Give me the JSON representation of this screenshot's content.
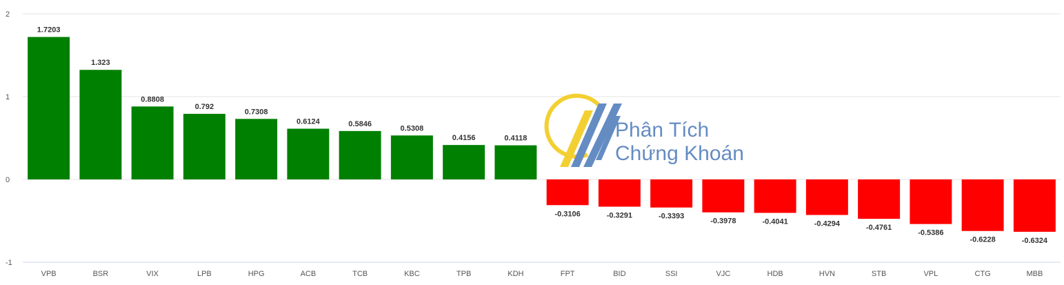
{
  "chart_data": {
    "type": "bar",
    "title": "",
    "xlabel": "",
    "ylabel": "",
    "ylim": [
      -1,
      2
    ],
    "yticks": [
      -1,
      0,
      1,
      2
    ],
    "grid": true,
    "legend": "none",
    "categories": [
      "VPB",
      "BSR",
      "VIX",
      "LPB",
      "HPG",
      "ACB",
      "TCB",
      "KBC",
      "TPB",
      "KDH",
      "FPT",
      "BID",
      "SSI",
      "VJC",
      "HDB",
      "HVN",
      "STB",
      "VPL",
      "CTG",
      "MBB"
    ],
    "values": [
      1.7203,
      1.323,
      0.8808,
      0.792,
      0.7308,
      0.6124,
      0.5846,
      0.5308,
      0.4156,
      0.4118,
      -0.3106,
      -0.3291,
      -0.3393,
      -0.3978,
      -0.4041,
      -0.4294,
      -0.4761,
      -0.5386,
      -0.6228,
      -0.6324
    ],
    "value_labels": [
      "1.7203",
      "1.323",
      "0.8808",
      "0.792",
      "0.7308",
      "0.6124",
      "0.5846",
      "0.5308",
      "0.4156",
      "0.4118",
      "-0.3106",
      "-0.3291",
      "-0.3393",
      "-0.3978",
      "-0.4041",
      "-0.4294",
      "-0.4761",
      "-0.5386",
      "-0.6228",
      "-0.6324"
    ],
    "colors": {
      "positive": "#008000",
      "negative": "#ff0000",
      "grid": "#e6e6e6",
      "axis": "#ccd6eb"
    }
  },
  "watermark": {
    "line1": "Phân Tích",
    "line2": "Chứng Khoán",
    "logo_icon": "stock-analysis-logo-icon"
  }
}
